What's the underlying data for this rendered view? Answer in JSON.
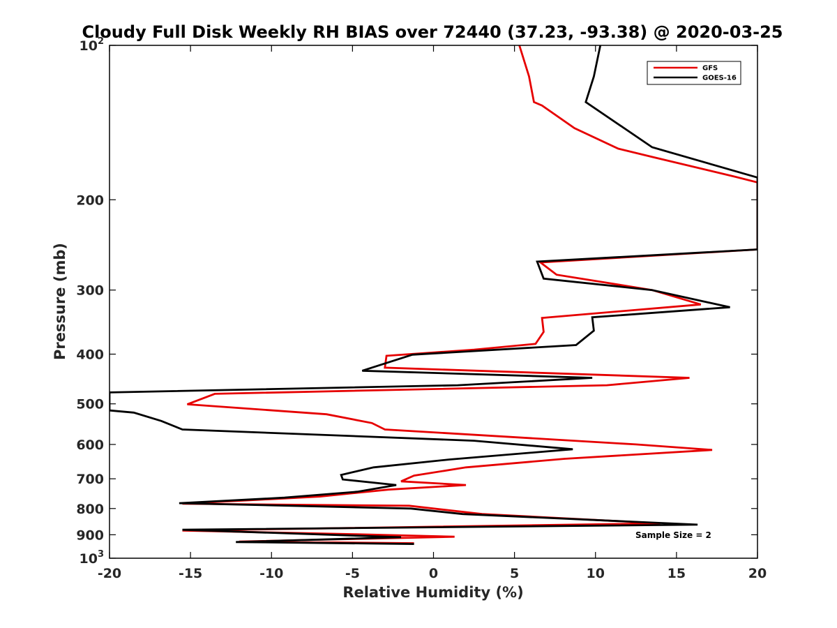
{
  "chart_data": {
    "type": "line",
    "title": "Cloudy Full Disk Weekly RH BIAS over 72440 (37.23, -93.38) @ 2020-03-25",
    "xlabel": "Relative Humidity (%)",
    "ylabel": "Pressure (mb)",
    "xlim": [
      -20,
      20
    ],
    "ylim": [
      100,
      1000
    ],
    "y_scale": "log",
    "y_reversed": true,
    "x_ticks": [
      -20,
      -15,
      -10,
      -5,
      0,
      5,
      10,
      15,
      20
    ],
    "x_tick_labels": [
      "-20",
      "-15",
      "-10",
      "-5",
      "0",
      "5",
      "10",
      "15",
      "20"
    ],
    "y_ticks": [
      {
        "value": 100,
        "base": "10",
        "exp": "2"
      },
      {
        "value": 200,
        "base": "200",
        "exp": ""
      },
      {
        "value": 300,
        "base": "300",
        "exp": ""
      },
      {
        "value": 400,
        "base": "400",
        "exp": ""
      },
      {
        "value": 500,
        "base": "500",
        "exp": ""
      },
      {
        "value": 600,
        "base": "600",
        "exp": ""
      },
      {
        "value": 700,
        "base": "700",
        "exp": ""
      },
      {
        "value": 800,
        "base": "800",
        "exp": ""
      },
      {
        "value": 900,
        "base": "900",
        "exp": ""
      },
      {
        "value": 1000,
        "base": "10",
        "exp": "3"
      }
    ],
    "grid": false,
    "legend_position": "top-right",
    "annotation": "Sample Size = 2",
    "series": [
      {
        "name": "GFS",
        "color": "#e60000",
        "points": [
          [
            5.3,
            100
          ],
          [
            5.9,
            115
          ],
          [
            6.2,
            129
          ],
          [
            6.7,
            131
          ],
          [
            8.7,
            145
          ],
          [
            11.4,
            159
          ],
          [
            13.5,
            165
          ],
          [
            18.5,
            180
          ],
          [
            20.0,
            185
          ],
          [
            20.0,
            250
          ],
          [
            6.6,
            265
          ],
          [
            7.6,
            280
          ],
          [
            13.5,
            300
          ],
          [
            16.5,
            320
          ],
          [
            6.7,
            340
          ],
          [
            6.8,
            362
          ],
          [
            6.3,
            382
          ],
          [
            2.5,
            392
          ],
          [
            -2.9,
            403
          ],
          [
            -3.0,
            425
          ],
          [
            15.8,
            445
          ],
          [
            10.7,
            460
          ],
          [
            -13.5,
            478
          ],
          [
            -15.2,
            501
          ],
          [
            -6.6,
            524
          ],
          [
            -3.8,
            545
          ],
          [
            -3.0,
            561
          ],
          [
            12.5,
            600
          ],
          [
            17.2,
            615
          ],
          [
            8.1,
            640
          ],
          [
            2.0,
            665
          ],
          [
            -1.2,
            690
          ],
          [
            -2.0,
            708
          ],
          [
            2.0,
            720
          ],
          [
            -2.8,
            735
          ],
          [
            -7.0,
            758
          ],
          [
            -15.5,
            783
          ],
          [
            -1.5,
            790
          ],
          [
            3.0,
            820
          ],
          [
            14.0,
            855
          ],
          [
            -15.5,
            883
          ],
          [
            -4.8,
            898
          ],
          [
            1.3,
            908
          ],
          [
            -12.0,
            928
          ],
          [
            -1.2,
            935
          ]
        ]
      },
      {
        "name": "GOES-16",
        "color": "#000000",
        "points": [
          [
            10.3,
            100
          ],
          [
            9.9,
            115
          ],
          [
            9.4,
            129
          ],
          [
            13.5,
            158
          ],
          [
            20.0,
            181
          ],
          [
            20.0,
            250
          ],
          [
            6.4,
            264
          ],
          [
            6.8,
            285
          ],
          [
            13.5,
            300
          ],
          [
            18.3,
            324
          ],
          [
            9.8,
            339
          ],
          [
            9.9,
            360
          ],
          [
            8.8,
            384
          ],
          [
            -1.3,
            401
          ],
          [
            -4.4,
            431
          ],
          [
            9.8,
            445
          ],
          [
            1.5,
            460
          ],
          [
            -20.0,
            475
          ],
          [
            -20.0,
            515
          ],
          [
            -18.5,
            520
          ],
          [
            -16.8,
            540
          ],
          [
            -15.5,
            561
          ],
          [
            2.5,
            590
          ],
          [
            8.6,
            613
          ],
          [
            1.0,
            642
          ],
          [
            -3.7,
            665
          ],
          [
            -5.7,
            688
          ],
          [
            -5.6,
            702
          ],
          [
            -2.3,
            720
          ],
          [
            -4.7,
            742
          ],
          [
            -9.2,
            762
          ],
          [
            -15.7,
            781
          ],
          [
            -1.4,
            800
          ],
          [
            1.8,
            820
          ],
          [
            16.3,
            860
          ],
          [
            -15.5,
            880
          ],
          [
            -2.0,
            910
          ],
          [
            -12.2,
            930
          ],
          [
            -1.2,
            938
          ]
        ]
      }
    ]
  }
}
